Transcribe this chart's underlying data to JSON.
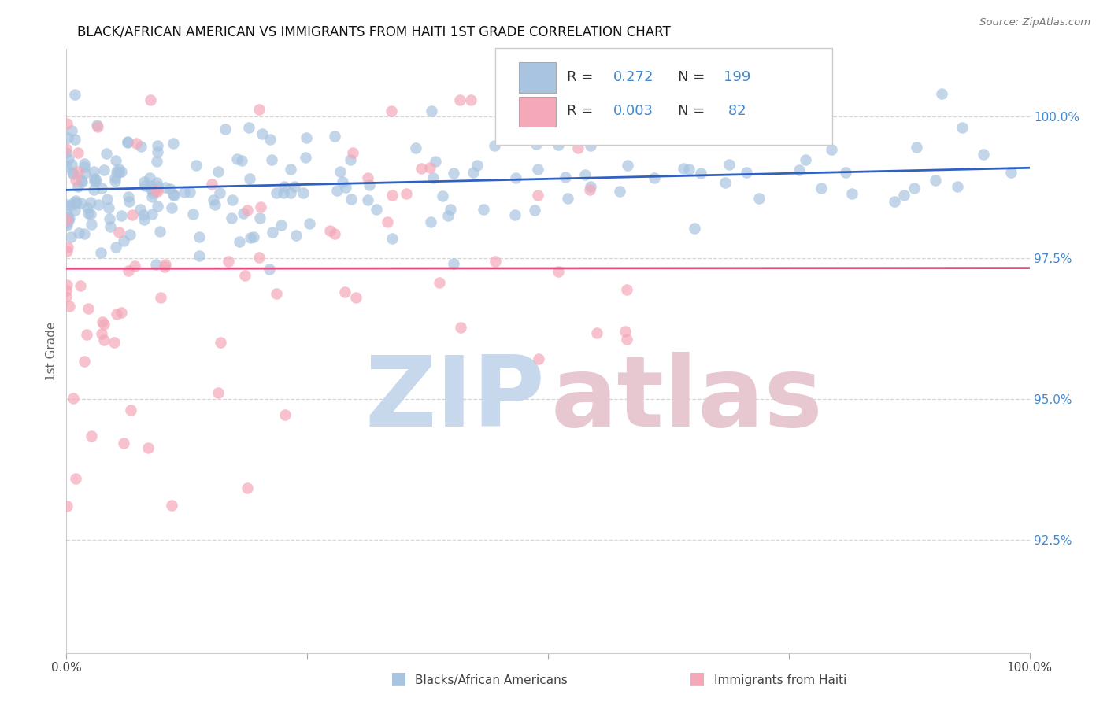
{
  "title": "BLACK/AFRICAN AMERICAN VS IMMIGRANTS FROM HAITI 1ST GRADE CORRELATION CHART",
  "source": "Source: ZipAtlas.com",
  "ylabel": "1st Grade",
  "right_yticks": [
    92.5,
    95.0,
    97.5,
    100.0
  ],
  "right_ytick_labels": [
    "92.5%",
    "95.0%",
    "97.5%",
    "100.0%"
  ],
  "legend_blue_r": "0.272",
  "legend_blue_n": "199",
  "legend_pink_r": "0.003",
  "legend_pink_n": " 82",
  "legend_label_blue": "Blacks/African Americans",
  "legend_label_pink": "Immigrants from Haiti",
  "blue_color": "#a8c4e0",
  "pink_color": "#f4a8b8",
  "trend_blue_color": "#3060c0",
  "trend_pink_color": "#e05080",
  "watermark_zip_color": "#c8d8ec",
  "watermark_atlas_color": "#e8c8d0",
  "background_color": "#ffffff",
  "grid_color": "#cccccc",
  "title_fontsize": 12,
  "axis_label_color": "#4488cc",
  "blue_scatter_seed": 42,
  "pink_scatter_seed": 7,
  "xlim": [
    0.0,
    1.0
  ],
  "ylim": [
    90.5,
    101.2
  ]
}
